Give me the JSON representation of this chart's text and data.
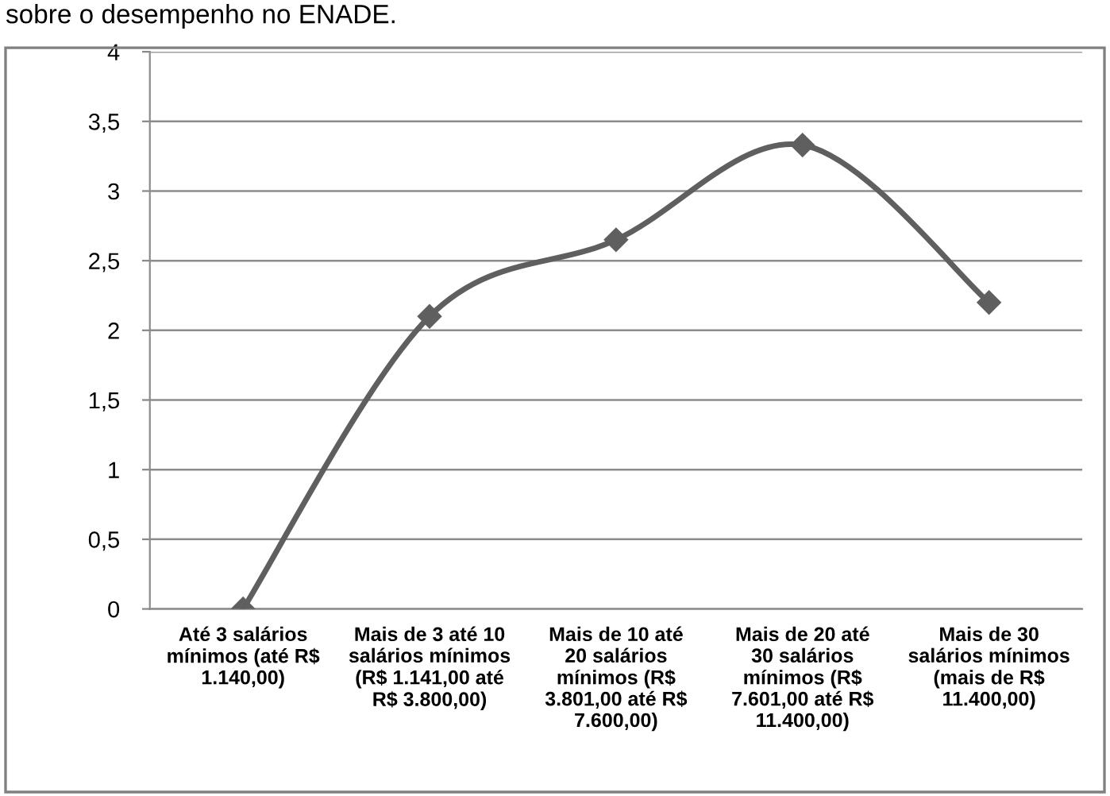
{
  "chart_data": {
    "type": "line",
    "title": "sobre o desempenho no ENADE.",
    "categories": [
      "Até 3 salários\nmínimos (até R$\n1.140,00)",
      "Mais de 3 até 10\nsalários mínimos\n(R$ 1.141,00 até\nR$ 3.800,00)",
      "Mais de 10 até\n20 salários\nmínimos (R$\n3.801,00 até R$\n7.600,00)",
      "Mais de 20 até\n30 salários\nmínimos (R$\n7.601,00 até R$\n11.400,00)",
      "Mais de 30\nsalários mínimos\n(mais de R$\n11.400,00)"
    ],
    "series": [
      {
        "color": "#5f5f5f",
        "values": [
          0,
          2.1,
          2.65,
          3.33,
          2.2
        ]
      }
    ],
    "ylim": [
      0,
      4
    ],
    "yticks": [
      0,
      {
        "value": 0.5,
        "label": "0,5"
      },
      1,
      {
        "value": 1.5,
        "label": "1,5"
      },
      2,
      {
        "value": 2.5,
        "label": "2,5"
      },
      3,
      {
        "value": 3.5,
        "label": "3,5"
      },
      4
    ],
    "grid": "y",
    "marker": "diamond",
    "line_style": "solid"
  }
}
